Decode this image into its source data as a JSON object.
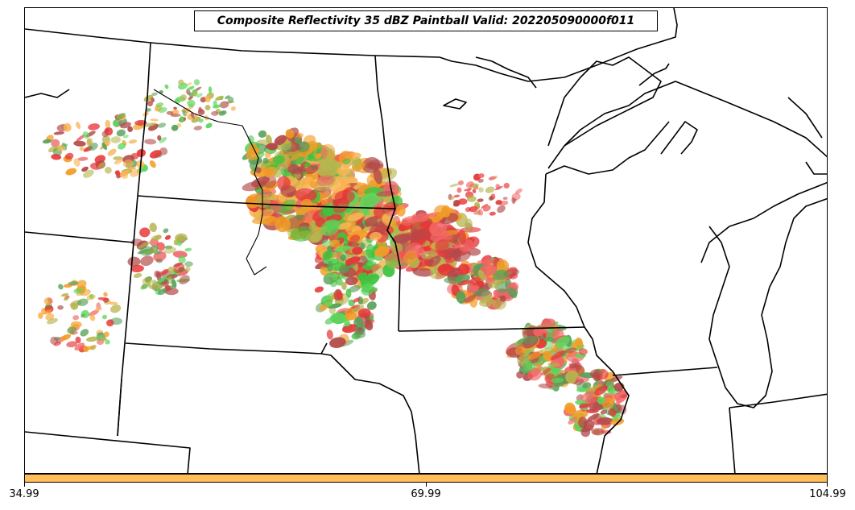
{
  "title": "Composite Reflectivity 35 dBZ Paintball Valid: 202205090000f011",
  "colorbar": {
    "color": "#ffbe5a",
    "ticks": [
      "34.99",
      "69.99",
      "104.99"
    ]
  },
  "palette": {
    "dark_red": "#a52a2a",
    "red": "#e11414",
    "light_red": "#f04a4a",
    "orange": "#f08c00",
    "light_orange": "#f9a633",
    "olive": "#a8a830",
    "green": "#1db81d",
    "light_green": "#40d040",
    "dark_green": "#3a8f3a",
    "boundary": "#000000"
  }
}
